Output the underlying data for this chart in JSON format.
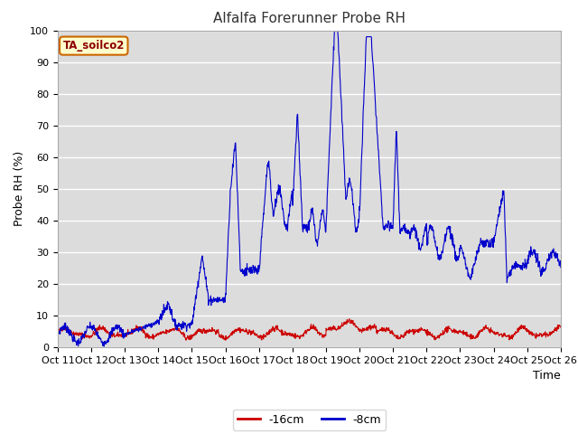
{
  "title": "Alfalfa Forerunner Probe RH",
  "ylabel": "Probe RH (%)",
  "xlabel": "Time",
  "ylim": [
    0,
    100
  ],
  "background_color": "#ffffff",
  "plot_bg_color": "#dcdcdc",
  "grid_color": "#ffffff",
  "color_red": "#cc0000",
  "color_blue": "#0000cc",
  "annotation_text": "TA_soilco2",
  "annotation_bg": "#ffffcc",
  "annotation_border": "#cc6600",
  "xtick_labels": [
    "Oct 11",
    "Oct 12",
    "Oct 13",
    "Oct 14",
    "Oct 15",
    "Oct 16",
    "Oct 17",
    "Oct 18",
    "Oct 19",
    "Oct 20",
    "Oct 21",
    "Oct 22",
    "Oct 23",
    "Oct 24",
    "Oct 25",
    "Oct 26"
  ],
  "legend_labels": [
    "-16cm",
    "-8cm"
  ],
  "title_fontsize": 11,
  "axis_fontsize": 9,
  "tick_fontsize": 8
}
